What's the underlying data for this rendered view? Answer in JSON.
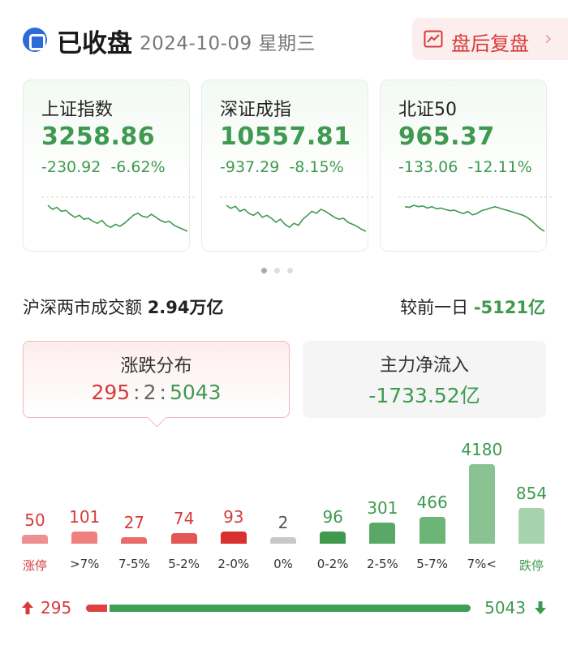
{
  "header": {
    "title": "已收盘",
    "date": "2024-10-09 星期三",
    "replay_label": "盘后复盘",
    "replay_chevron": "›",
    "icons": {
      "logo": "market-logo-icon",
      "replay": "line-chart-icon"
    }
  },
  "indices": [
    {
      "name": "上证指数",
      "value": "3258.86",
      "change": "-230.92",
      "pct": "-6.62%",
      "spark": [
        58,
        62,
        60,
        64,
        63,
        67,
        70,
        68,
        72,
        71,
        74,
        76,
        73,
        78,
        80,
        77,
        79,
        76,
        72,
        68,
        66,
        69,
        70,
        67,
        70,
        73,
        75,
        74,
        78,
        80,
        82,
        84
      ]
    },
    {
      "name": "深证成指",
      "value": "10557.81",
      "change": "-937.29",
      "pct": "-8.15%",
      "spark": [
        60,
        63,
        61,
        66,
        64,
        68,
        70,
        67,
        72,
        70,
        73,
        77,
        74,
        79,
        82,
        78,
        80,
        74,
        70,
        66,
        68,
        64,
        66,
        69,
        72,
        74,
        73,
        77,
        79,
        81,
        84,
        86
      ]
    },
    {
      "name": "北证50",
      "value": "965.37",
      "change": "-133.06",
      "pct": "-12.11%",
      "spark": [
        60,
        61,
        58,
        60,
        59,
        62,
        60,
        63,
        62,
        64,
        66,
        65,
        68,
        70,
        67,
        72,
        70,
        66,
        64,
        62,
        60,
        62,
        64,
        66,
        68,
        70,
        72,
        75,
        80,
        86,
        92,
        96
      ]
    }
  ],
  "carousel": {
    "count": 3,
    "active": 0
  },
  "turnover": {
    "label": "沪深两市成交额",
    "value": "2.94万亿",
    "compare_label": "较前一日",
    "compare_value": "-5121亿"
  },
  "distribution_panel": {
    "title": "涨跌分布",
    "up": "295",
    "flat": "2",
    "down": "5043",
    "sep": ":"
  },
  "flow_panel": {
    "title": "主力净流入",
    "value": "-1733.52亿"
  },
  "distribution": [
    {
      "label": "涨停",
      "count": 50,
      "color": "#f08f8f",
      "text_color": "#d63b3b",
      "label_color": "#d63b3b"
    },
    {
      "label": ">7%",
      "count": 101,
      "color": "#f08080",
      "text_color": "#d63b3b",
      "label_color": "#333333"
    },
    {
      "label": "7-5%",
      "count": 27,
      "color": "#ea6a6a",
      "text_color": "#d63b3b",
      "label_color": "#333333"
    },
    {
      "label": "5-2%",
      "count": 74,
      "color": "#e45555",
      "text_color": "#d63b3b",
      "label_color": "#333333"
    },
    {
      "label": "2-0%",
      "count": 93,
      "color": "#d93030",
      "text_color": "#d63b3b",
      "label_color": "#333333"
    },
    {
      "label": "0%",
      "count": 2,
      "color": "#c8c8c8",
      "text_color": "#555555",
      "label_color": "#333333"
    },
    {
      "label": "0-2%",
      "count": 96,
      "color": "#3f9a4e",
      "text_color": "#3e9a4f",
      "label_color": "#333333"
    },
    {
      "label": "2-5%",
      "count": 301,
      "color": "#5aa865",
      "text_color": "#3e9a4f",
      "label_color": "#333333"
    },
    {
      "label": "5-7%",
      "count": 466,
      "color": "#6db477",
      "text_color": "#3e9a4f",
      "label_color": "#333333"
    },
    {
      "label": "7%<",
      "count": 4180,
      "color": "#88c391",
      "text_color": "#3e9a4f",
      "label_color": "#333333"
    },
    {
      "label": "跌停",
      "count": 854,
      "color": "#a6d3ac",
      "text_color": "#3e9a4f",
      "label_color": "#3e9a4f"
    }
  ],
  "ratio_bar": {
    "up": "295",
    "down": "5043",
    "up_fraction": 0.055
  }
}
